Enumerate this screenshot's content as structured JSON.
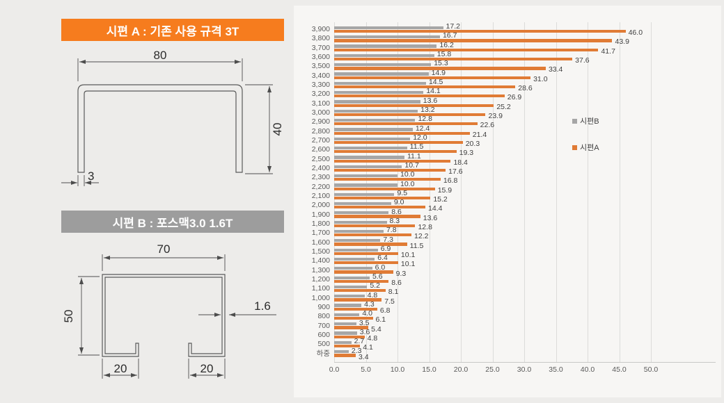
{
  "panel_a": {
    "title": "시편 A : 기존 사용 규격 3T",
    "color": "#F67C1E",
    "dims": {
      "width": "80",
      "height": "40",
      "thickness": "3"
    }
  },
  "panel_b": {
    "title": "시편 B : 포스맥3.0 1.6T",
    "color": "#9D9D9D",
    "dims": {
      "width": "70",
      "height": "50",
      "thickness": "1.6",
      "flange_left": "20",
      "flange_right": "20"
    }
  },
  "chart_data": {
    "type": "bar",
    "orientation": "horizontal",
    "title": "",
    "xlabel": "",
    "ylabel": "",
    "xlim": [
      0,
      61
    ],
    "grid": true,
    "legend_position": "right-inside",
    "xticks": [
      "0.0",
      "5.0",
      "10.0",
      "15.0",
      "20.0",
      "25.0",
      "30.0",
      "35.0",
      "40.0",
      "45.0",
      "50.0"
    ],
    "categories": [
      "3,900",
      "3,800",
      "3,700",
      "3,600",
      "3,500",
      "3,400",
      "3,300",
      "3,200",
      "3,100",
      "3,000",
      "2,900",
      "2,800",
      "2,700",
      "2,600",
      "2,500",
      "2,400",
      "2,300",
      "2,200",
      "2,100",
      "2,000",
      "1,900",
      "1,800",
      "1,700",
      "1,600",
      "1,500",
      "1,400",
      "1,300",
      "1,200",
      "1,100",
      "1,000",
      "900",
      "800",
      "700",
      "600",
      "500",
      "하중"
    ],
    "series": [
      {
        "name": "시편B",
        "color": "#A6A6A6",
        "values": [
          17.2,
          16.7,
          16.2,
          15.8,
          15.3,
          14.9,
          14.5,
          14.1,
          13.6,
          13.2,
          12.8,
          12.4,
          12.0,
          11.5,
          11.1,
          10.7,
          10.0,
          10.0,
          9.5,
          9.0,
          8.6,
          8.3,
          7.8,
          7.3,
          6.9,
          6.4,
          6.0,
          5.6,
          5.2,
          4.8,
          4.3,
          4.0,
          3.5,
          3.6,
          2.7,
          2.3
        ]
      },
      {
        "name": "시편A",
        "color": "#E07B35",
        "values": [
          46.0,
          43.9,
          41.7,
          37.6,
          33.4,
          31.0,
          28.6,
          26.9,
          25.2,
          23.9,
          22.6,
          21.4,
          20.3,
          19.3,
          18.4,
          17.6,
          16.8,
          15.9,
          15.2,
          14.4,
          13.6,
          12.8,
          12.2,
          11.5,
          10.1,
          10.1,
          9.3,
          8.6,
          8.1,
          7.5,
          6.8,
          6.1,
          5.4,
          4.8,
          4.1,
          3.4
        ]
      }
    ]
  }
}
